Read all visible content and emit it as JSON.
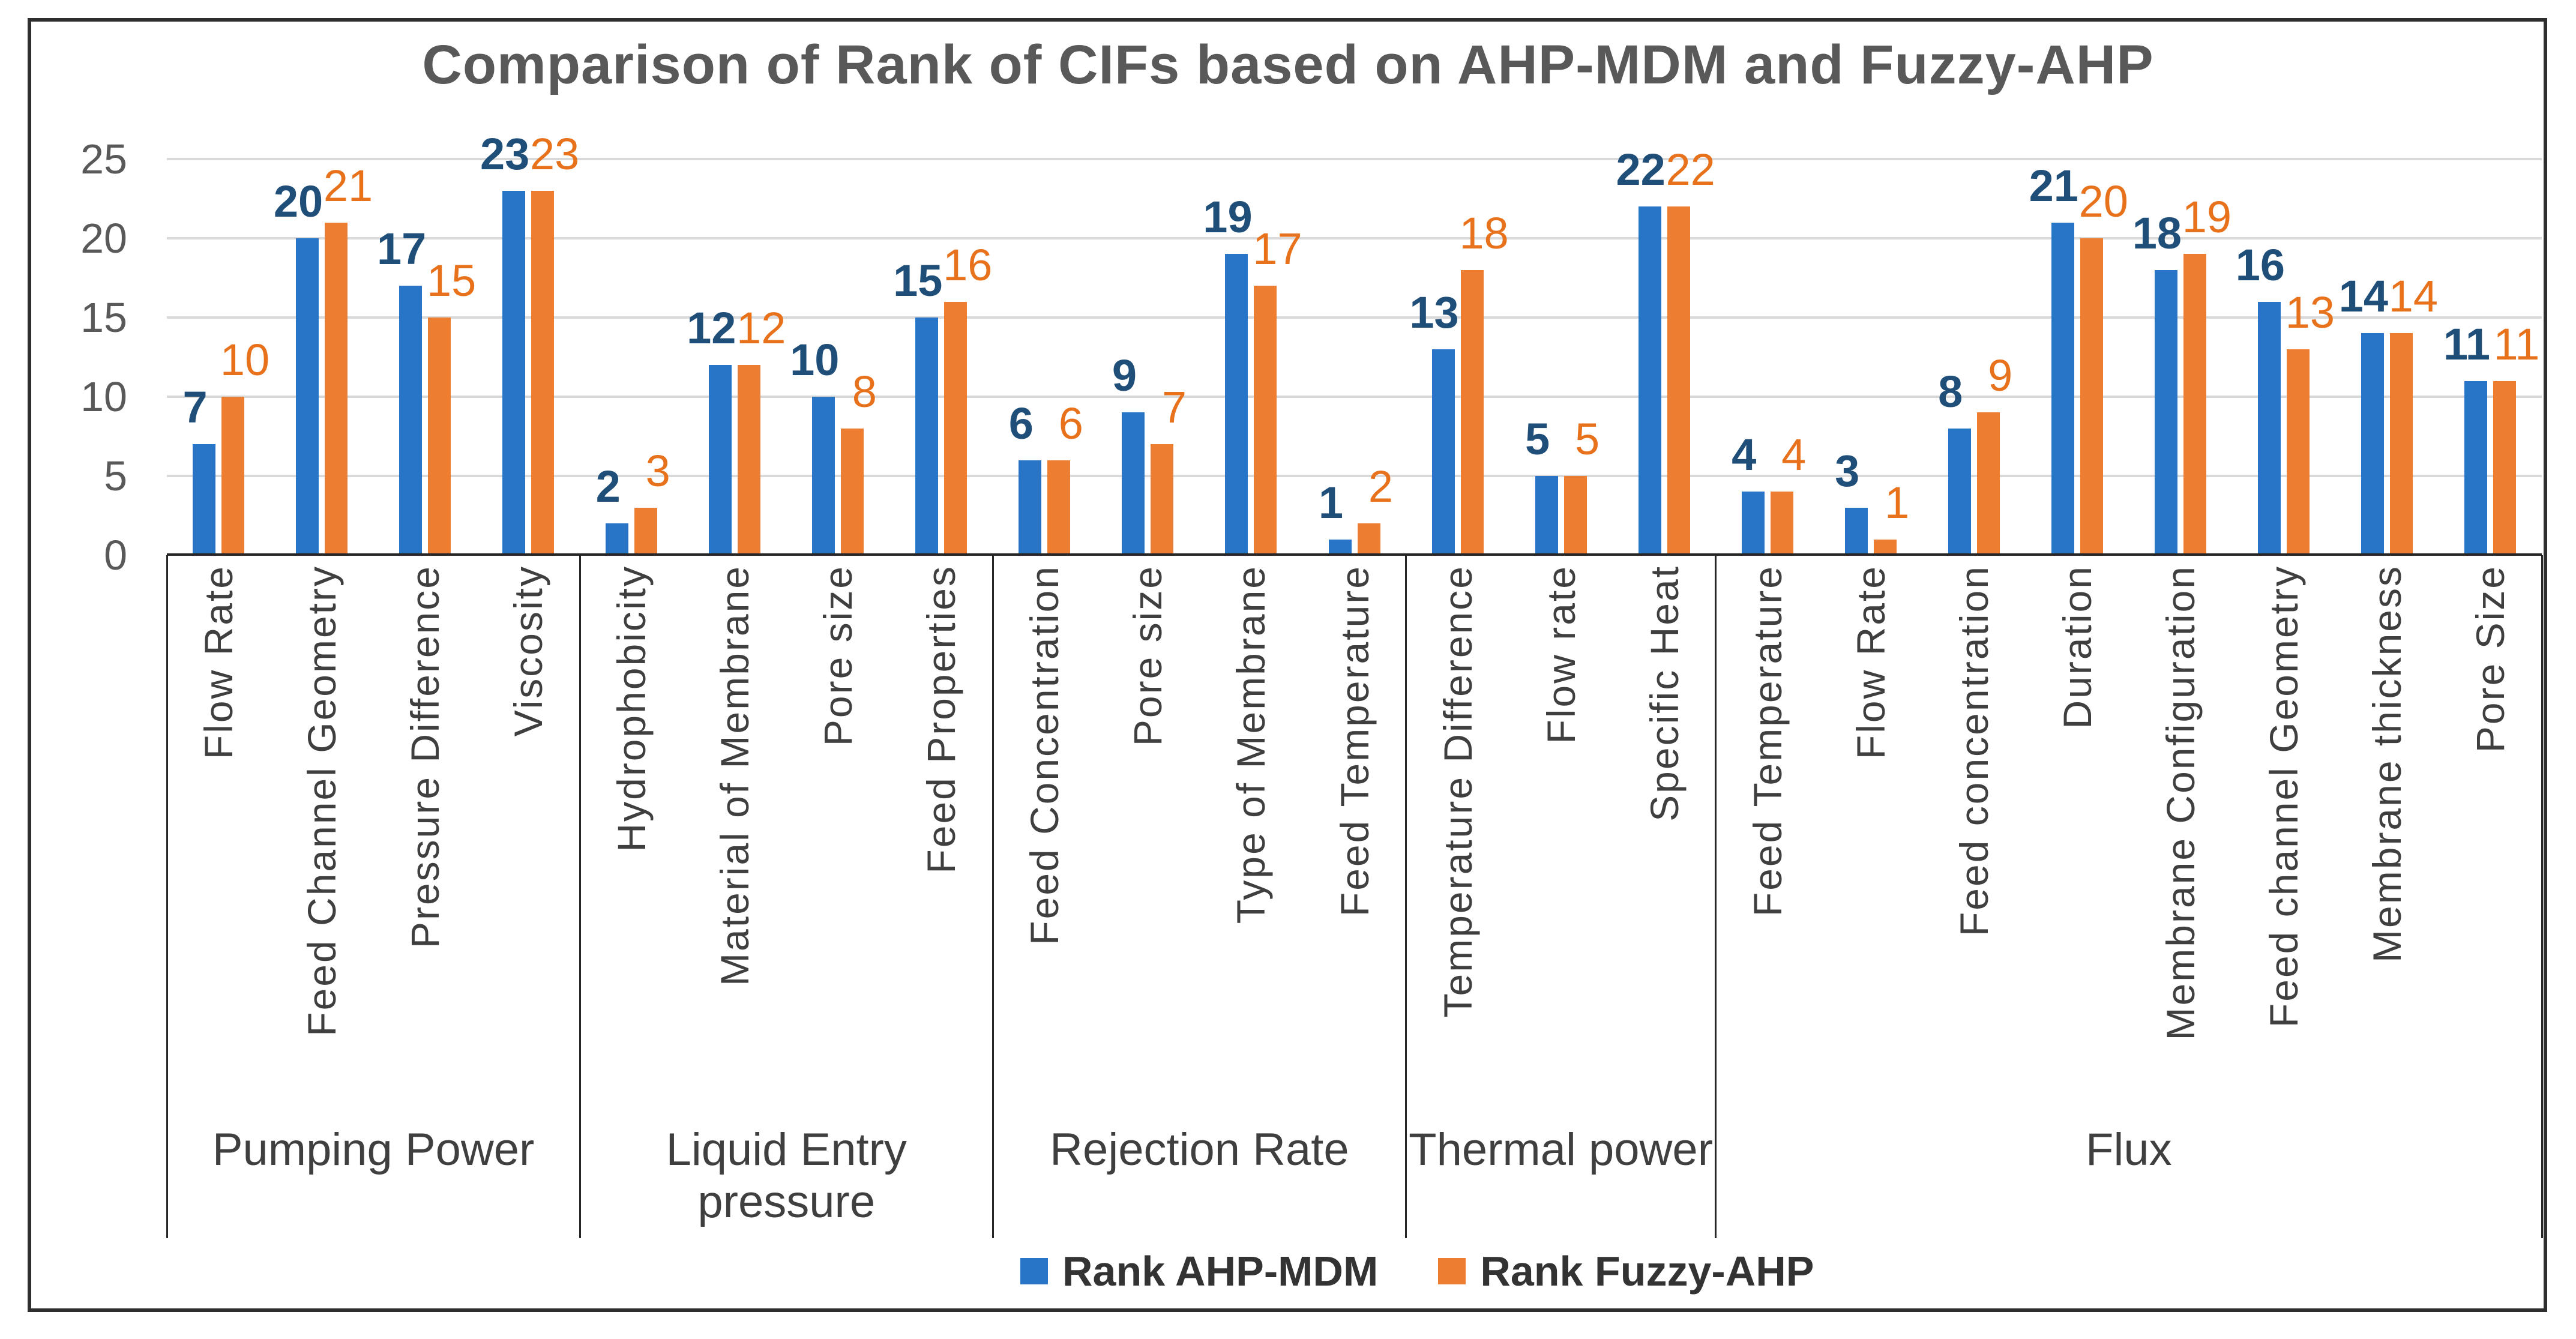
{
  "title": "Comparison of Rank of CIFs based on AHP-MDM and Fuzzy-AHP",
  "legend": [
    {
      "label": "Rank AHP-MDM",
      "color": "#2874C6"
    },
    {
      "label": "Rank Fuzzy-AHP",
      "color": "#ED7D31"
    }
  ],
  "colors": {
    "bar_blue": "#2874C6",
    "bar_orange": "#ED7D31",
    "label_blue": "#1F4E79",
    "label_orange": "#E8711C",
    "gridline": "#D9D9D9",
    "axis_line": "#262626",
    "tick_text": "#595959",
    "title_text": "#595959",
    "category_text": "#3F3F3F"
  },
  "chart_data": {
    "type": "bar",
    "title": "Comparison of Rank of CIFs based on AHP-MDM and Fuzzy-AHP",
    "xlabel": "",
    "ylabel": "",
    "ylim": [
      0,
      25
    ],
    "y_ticks": [
      0,
      5,
      10,
      15,
      20,
      25
    ],
    "grid": true,
    "legend_position": "bottom",
    "groups": [
      {
        "label": "Pumping Power",
        "categories": [
          "Flow Rate",
          "Feed Channel Geometry",
          "Pressure Difference",
          "Viscosity"
        ]
      },
      {
        "label": "Liquid Entry pressure",
        "categories": [
          "Hydrophobicity",
          "Material of Membrane",
          "Pore size",
          "Feed Properties"
        ]
      },
      {
        "label": "Rejection Rate",
        "categories": [
          "Feed Concentration",
          "Pore size",
          "Type of Membrane",
          "Feed Temperature"
        ]
      },
      {
        "label": "Thermal power",
        "categories": [
          "Temperature Difference",
          "Flow rate",
          "Specific Heat"
        ]
      },
      {
        "label": "Flux",
        "categories": [
          "Feed Temperature",
          "Flow Rate",
          "Feed concentration",
          "Duration",
          "Membrane Configuration",
          "Feed channel Geometry",
          "Membrane thickness",
          "Pore Size"
        ]
      }
    ],
    "series": [
      {
        "name": "Rank AHP-MDM",
        "color": "#2874C6",
        "label_color": "#1F4E79",
        "values": [
          7,
          20,
          17,
          23,
          2,
          12,
          10,
          15,
          6,
          9,
          19,
          1,
          13,
          5,
          22,
          4,
          3,
          8,
          21,
          18,
          16,
          14,
          11
        ]
      },
      {
        "name": "Rank Fuzzy-AHP",
        "color": "#ED7D31",
        "label_color": "#E8711C",
        "values": [
          10,
          21,
          15,
          23,
          3,
          12,
          8,
          16,
          6,
          7,
          17,
          2,
          18,
          5,
          22,
          4,
          1,
          9,
          20,
          19,
          13,
          14,
          11
        ]
      }
    ]
  }
}
